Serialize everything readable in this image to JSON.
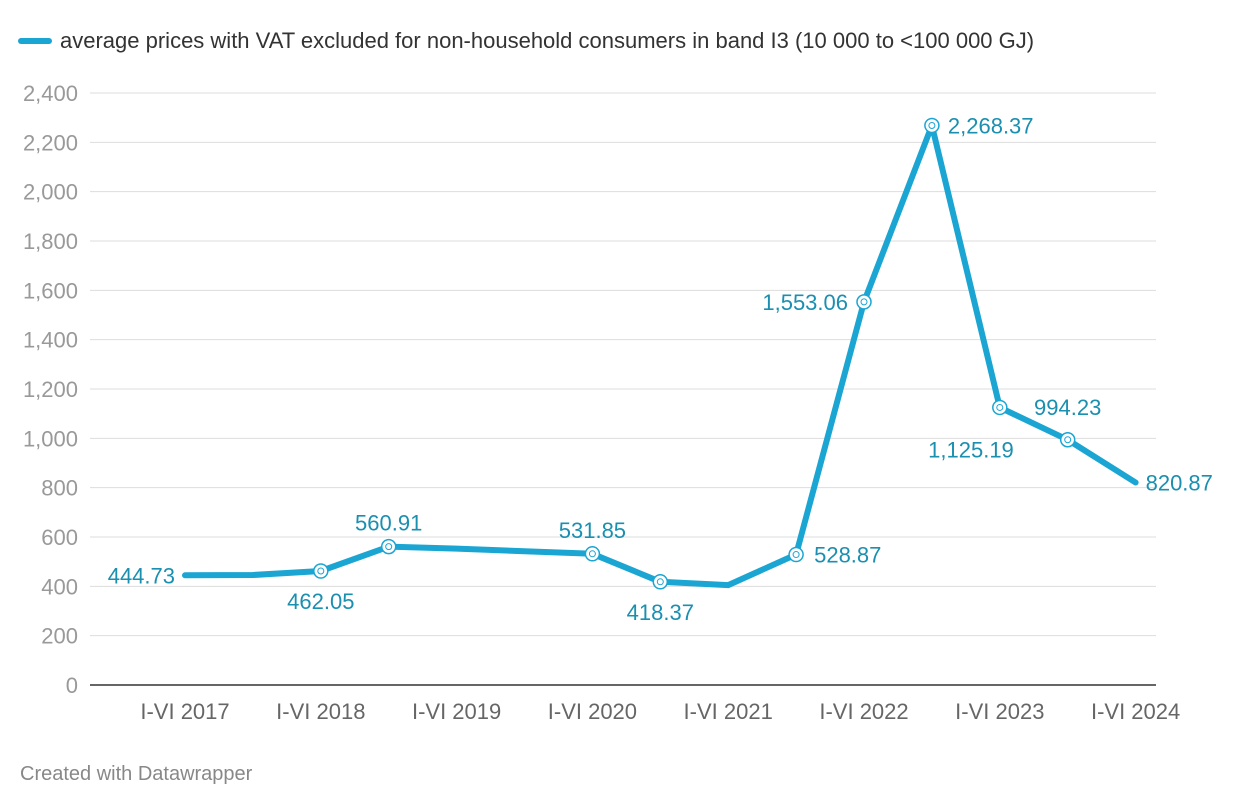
{
  "legend": {
    "label": "average prices with VAT excluded for non-household consumers in band I3 (10 000 to <100 000 GJ)"
  },
  "credit": "Created with Datawrapper",
  "colors": {
    "series": "#1ba5d3",
    "label": "#1a8fb0",
    "grid": "#dddddd",
    "axis": "#333333"
  },
  "chart_data": {
    "type": "line",
    "title": "",
    "xlabel": "",
    "ylabel": "",
    "ylim": [
      0,
      2400
    ],
    "yticks": [
      0,
      200,
      400,
      600,
      800,
      1000,
      1200,
      1400,
      1600,
      1800,
      2000,
      2200,
      2400
    ],
    "ytick_labels": [
      "0",
      "200",
      "400",
      "600",
      "800",
      "1,000",
      "1,200",
      "1,400",
      "1,600",
      "1,800",
      "2,000",
      "2,200",
      "2,400"
    ],
    "categories": [
      "I-VI 2017",
      "I-VI 2018",
      "I-VI 2019",
      "I-VI 2020",
      "I-VI 2021",
      "I-VI 2022",
      "I-VI 2023",
      "I-VI 2024"
    ],
    "grid": true,
    "legend_position": "top-left",
    "series": [
      {
        "name": "average prices with VAT excluded for non-household consumers in band I3 (10 000 to <100 000 GJ)",
        "points": [
          {
            "x": "2017-S1",
            "y": 444.73,
            "label": "444.73",
            "marker": false
          },
          {
            "x": "2017-S2",
            "y": 446,
            "label": null,
            "marker": false
          },
          {
            "x": "2018-S1",
            "y": 462.05,
            "label": "462.05",
            "marker": true
          },
          {
            "x": "2018-S2",
            "y": 560.91,
            "label": "560.91",
            "marker": true
          },
          {
            "x": "2019-S1",
            "y": 553,
            "label": null,
            "marker": false
          },
          {
            "x": "2019-S2",
            "y": 542,
            "label": null,
            "marker": false
          },
          {
            "x": "2020-S1",
            "y": 531.85,
            "label": "531.85",
            "marker": true
          },
          {
            "x": "2020-S2",
            "y": 418.37,
            "label": "418.37",
            "marker": true
          },
          {
            "x": "2021-S1",
            "y": 405,
            "label": null,
            "marker": false
          },
          {
            "x": "2021-S2",
            "y": 528.87,
            "label": "528.87",
            "marker": true
          },
          {
            "x": "2022-S1",
            "y": 1553.06,
            "label": "1,553.06",
            "marker": true
          },
          {
            "x": "2022-S2",
            "y": 2268.37,
            "label": "2,268.37",
            "marker": true
          },
          {
            "x": "2023-S1",
            "y": 1125.19,
            "label": "1,125.19",
            "marker": true
          },
          {
            "x": "2023-S2",
            "y": 994.23,
            "label": "994.23",
            "marker": true
          },
          {
            "x": "2024-S1",
            "y": 820.87,
            "label": "820.87",
            "marker": false
          }
        ]
      }
    ]
  }
}
